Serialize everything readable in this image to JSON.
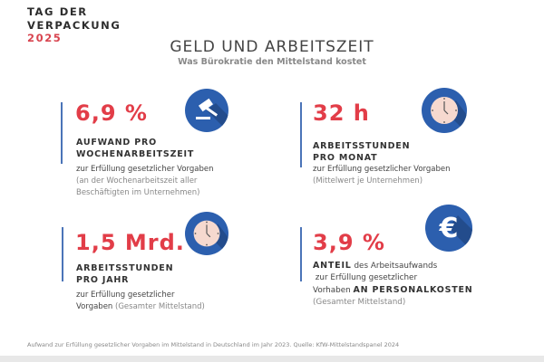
{
  "logo": {
    "line1": "TAG DER",
    "line2": "VERPACKUNG",
    "year": "2025"
  },
  "header": {
    "title": "GELD UND ARBEITSZEIT",
    "subtitle": "Was Bürokratie den Mittelstand kostet"
  },
  "cards": [
    {
      "value": "6,9 %",
      "heading1": "AUFWAND PRO",
      "heading2": "WOCHENARBEITSZEIT",
      "desc": "zur Erfüllung gesetzlicher Vorgaben",
      "note1": "(an der Wochenarbeitszeit aller",
      "note2": "Beschäftigten im Unternehmen)",
      "icon": "gavel-icon"
    },
    {
      "value": "32 h",
      "heading1": "ARBEITSSTUNDEN",
      "heading2": "PRO MONAT",
      "desc": "zur Erfüllung gesetzlicher Vorgaben",
      "note1": "(Mittelwert je Unternehmen)",
      "icon": "clock-icon"
    },
    {
      "value": "1,5 Mrd.",
      "heading1": "ARBEITSSTUNDEN",
      "heading2": "PRO JAHR",
      "desc1": "zur Erfüllung gesetzlicher",
      "desc2": "Vorgaben",
      "note1": "(Gesamter Mittelstand)",
      "icon": "clock-icon"
    },
    {
      "value": "3,9 %",
      "bold1": "ANTEIL",
      "text1": " des Arbeitsaufwands",
      "text2": " zur Erfüllung gesetzlicher",
      "text3": "Vorhaben ",
      "bold2": "AN PERSONALKOSTEN",
      "note1": "(Gesamter Mittelstand)",
      "icon": "euro-icon"
    }
  ],
  "footer": "Aufwand zur Erfüllung gesetzlicher Vorgaben im Mittelstand in Deutschland im Jahr 2023. Quelle: KfW-Mittelstandspanel 2024",
  "colors": {
    "accent_red": "#e23d48",
    "accent_blue": "#2c5fae",
    "bar_blue": "#4b74b8"
  }
}
